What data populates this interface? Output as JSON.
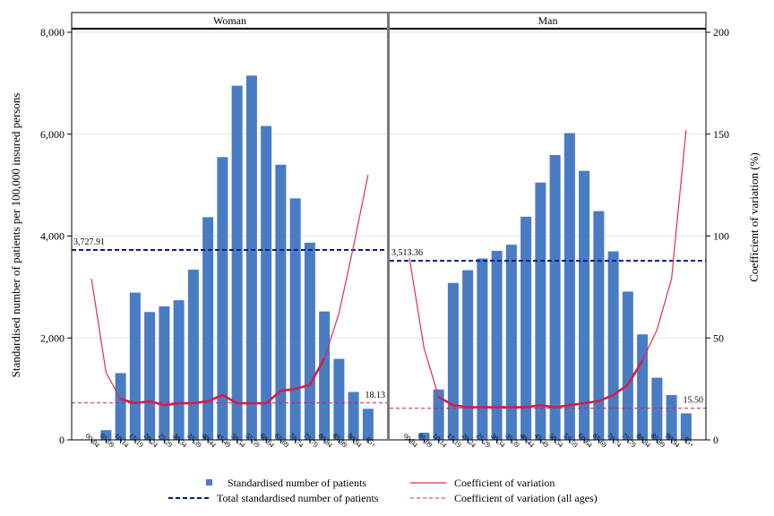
{
  "chart_data": {
    "type": "bar",
    "ylabel": "Standardised number of patients per 100,000 insured persons",
    "y2label": "Coefficient of variation (%)",
    "ylim": [
      0,
      8000
    ],
    "y2lim": [
      0,
      200
    ],
    "yticks": [
      "0",
      "2,000",
      "4,000",
      "6,000",
      "8,000"
    ],
    "y2ticks": [
      "0",
      "50",
      "100",
      "150",
      "200"
    ],
    "categories": [
      "00-04",
      "05-09",
      "10-14",
      "15-19",
      "20-24",
      "25-29",
      "30-34",
      "35-39",
      "40-44",
      "45-49",
      "50-54",
      "55-59",
      "60-64",
      "65-69",
      "70-74",
      "75-79",
      "80-84",
      "85-89",
      "90-94",
      "95+"
    ],
    "panels": [
      {
        "name": "Woman",
        "bars": [
          0,
          190,
          1310,
          2890,
          2510,
          2620,
          2740,
          3340,
          4370,
          5550,
          6950,
          7150,
          6160,
          5400,
          4740,
          3870,
          2520,
          1590,
          940,
          610
        ],
        "cv": [
          79,
          33,
          20,
          18,
          19,
          17,
          18,
          18,
          19,
          22,
          18,
          18,
          18,
          24,
          25,
          27,
          40,
          62,
          95,
          130
        ],
        "cv_highlight_range": [
          2,
          16
        ],
        "total_line": 3727.91,
        "total_label": "3,727.91",
        "cv_all": 18.13,
        "cv_all_label": "18.13"
      },
      {
        "name": "Man",
        "bars": [
          15,
          140,
          990,
          3080,
          3330,
          3560,
          3710,
          3830,
          4380,
          5050,
          5590,
          6020,
          5280,
          4490,
          3700,
          2910,
          2070,
          1220,
          880,
          520
        ],
        "cv": [
          89,
          45,
          21,
          17,
          16,
          16,
          16,
          16,
          16,
          17,
          16,
          17,
          18,
          19,
          22,
          27,
          39,
          54,
          79,
          152
        ],
        "cv_highlight_range": [
          2,
          16
        ],
        "total_line": 3513.36,
        "total_label": "3,513.36",
        "cv_all": 15.5,
        "cv_all_label": "15.50"
      }
    ],
    "legend": {
      "bars": "Standardised number of patients",
      "cv": "Coefficient of variation",
      "total": "Total standardised number of patients",
      "cv_all": "Coefficient of variation (all ages)"
    },
    "colors": {
      "bar": "#4a7cc4",
      "cv": "#e0304a",
      "cv_bold": "#d0204a",
      "total": "#0a1a8c",
      "cv_all": "#d02050",
      "label_dark": "#0a1a8c",
      "label_red": "#b00030"
    }
  }
}
